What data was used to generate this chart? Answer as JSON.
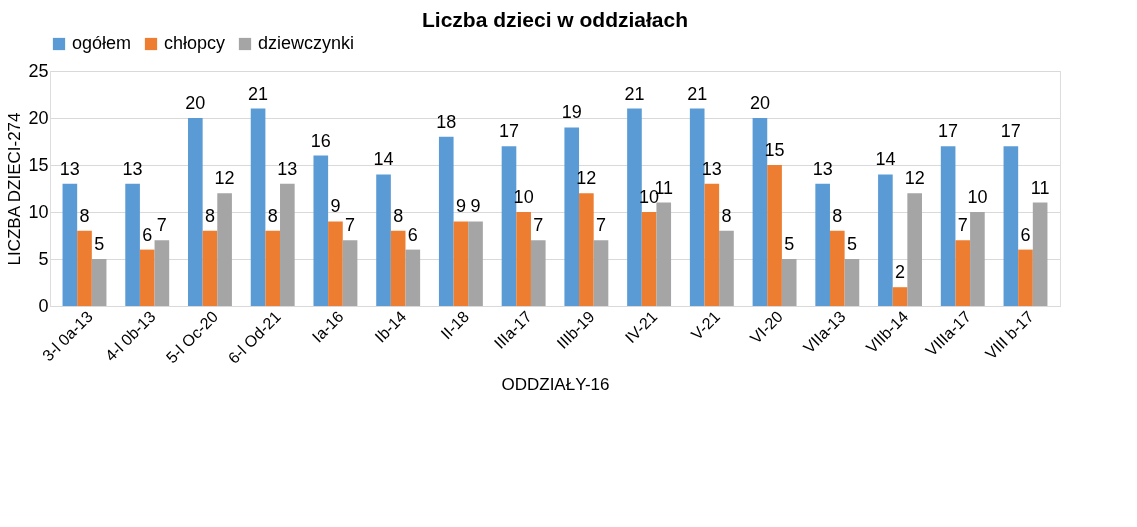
{
  "chart_data": {
    "type": "bar",
    "title": "Liczba dzieci w oddziałach",
    "xlabel": "ODDZIAŁY-16",
    "ylabel": "LICZBA DZIECI-274",
    "categories": [
      "3-l 0a-13",
      "4-l 0b-13",
      "5-l Oc-20",
      "6-l Od-21",
      "Ia-16",
      "Ib-14",
      "II-18",
      "IIIa-17",
      "IIIb-19",
      "IV-21",
      "V-21",
      "VI-20",
      "VIIa-13",
      "VIIb-14",
      "VIIIa-17",
      "VIII b-17"
    ],
    "series": [
      {
        "name": "ogółem",
        "color": "#5b9bd5",
        "values": [
          13,
          13,
          20,
          21,
          16,
          14,
          18,
          17,
          19,
          21,
          21,
          20,
          13,
          14,
          17,
          17
        ]
      },
      {
        "name": "chłopcy",
        "color": "#ed7d31",
        "values": [
          8,
          6,
          8,
          8,
          9,
          8,
          9,
          10,
          12,
          10,
          13,
          15,
          8,
          2,
          7,
          6
        ]
      },
      {
        "name": "dziewczynki",
        "color": "#a5a5a5",
        "values": [
          5,
          7,
          12,
          13,
          7,
          6,
          9,
          7,
          7,
          11,
          8,
          5,
          5,
          12,
          10,
          11
        ]
      }
    ],
    "ylim": [
      0,
      25
    ],
    "yticks": [
      0,
      5,
      10,
      15,
      20,
      25
    ],
    "grid": "y",
    "legend": "top",
    "data_labels": true
  }
}
